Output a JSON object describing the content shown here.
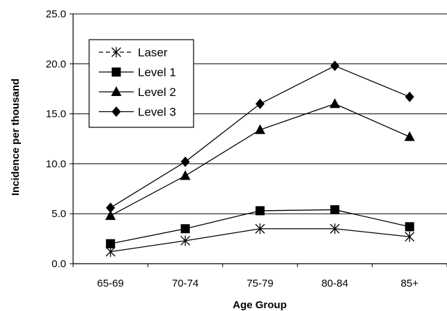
{
  "chart_data": {
    "type": "line",
    "title": "",
    "xlabel": "Age Group",
    "ylabel": "Incidence per thousand",
    "categories": [
      "65-69",
      "70-74",
      "75-79",
      "80-84",
      "85+"
    ],
    "ylim": [
      0,
      25
    ],
    "yticks": [
      0,
      5,
      10,
      15,
      20,
      25
    ],
    "ytick_labels": [
      "0.0",
      "5.0",
      "10.0",
      "15.0",
      "20.0",
      "25.0"
    ],
    "grid": "horizontal",
    "legend_position": "top-left",
    "series": [
      {
        "name": "Laser",
        "marker": "asterisk",
        "line": "dashed",
        "values": [
          1.2,
          2.3,
          3.5,
          3.5,
          2.7
        ]
      },
      {
        "name": "Level 1",
        "marker": "square",
        "line": "solid",
        "values": [
          2.0,
          3.5,
          5.3,
          5.4,
          3.7
        ]
      },
      {
        "name": "Level 2",
        "marker": "triangle",
        "line": "solid",
        "values": [
          4.8,
          8.8,
          13.4,
          16.0,
          12.7
        ]
      },
      {
        "name": "Level 3",
        "marker": "diamond",
        "line": "solid",
        "values": [
          5.6,
          10.2,
          16.0,
          19.8,
          16.7
        ]
      }
    ]
  }
}
